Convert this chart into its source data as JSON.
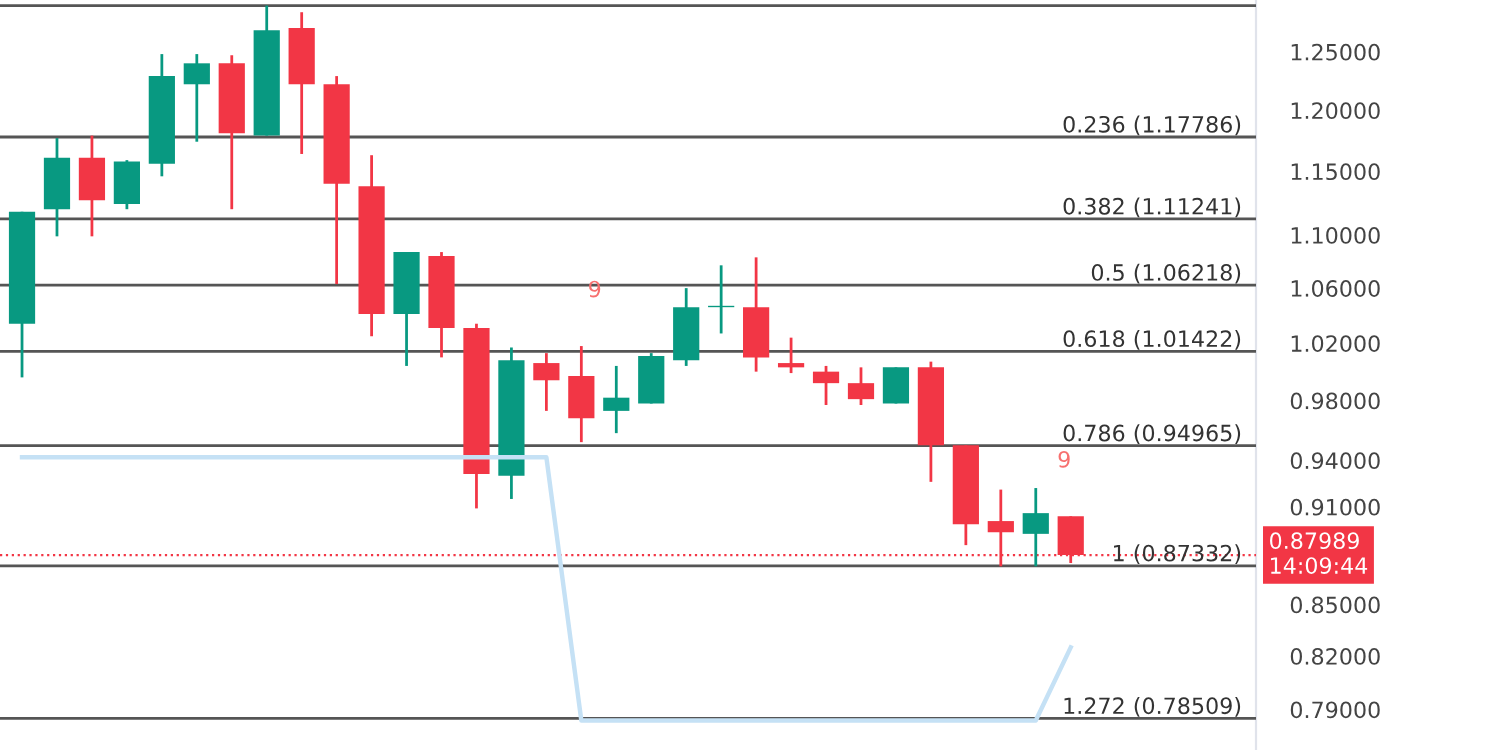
{
  "chart_data": {
    "type": "candlestick",
    "categories": [
      null,
      null,
      null,
      null,
      null,
      null,
      null,
      null,
      null,
      null,
      null,
      null,
      null,
      null,
      null,
      null,
      null,
      null,
      null,
      null,
      null,
      null,
      null,
      null,
      null,
      null,
      null,
      null,
      null,
      null,
      null
    ],
    "ohlc": [
      [
        1.034,
        1.118,
        0.996,
        1.118
      ],
      [
        1.12,
        1.177,
        1.099,
        1.161
      ],
      [
        1.161,
        1.179,
        1.099,
        1.127
      ],
      [
        1.124,
        1.159,
        1.12,
        1.158
      ],
      [
        1.156,
        1.248,
        1.146,
        1.229
      ],
      [
        1.222,
        1.248,
        1.174,
        1.24
      ],
      [
        1.24,
        1.247,
        1.12,
        1.181
      ],
      [
        1.179,
        1.291,
        1.179,
        1.269
      ],
      [
        1.271,
        1.285,
        1.164,
        1.222
      ],
      [
        1.222,
        1.229,
        1.063,
        1.14
      ],
      [
        1.138,
        1.163,
        1.025,
        1.041
      ],
      [
        1.041,
        1.087,
        1.004,
        1.087
      ],
      [
        1.084,
        1.087,
        1.01,
        1.031
      ],
      [
        1.031,
        1.034,
        0.909,
        0.931
      ],
      [
        0.93,
        1.017,
        0.915,
        1.008
      ],
      [
        1.006,
        1.013,
        0.973,
        0.994
      ],
      [
        0.997,
        1.018,
        0.952,
        0.968
      ],
      [
        0.973,
        1.004,
        0.958,
        0.982
      ],
      [
        0.978,
        1.013,
        0.978,
        1.011
      ],
      [
        1.008,
        1.06,
        1.004,
        1.046
      ],
      [
        1.046,
        1.077,
        1.027,
        1.047
      ],
      [
        1.046,
        1.083,
        1.0,
        1.01
      ],
      [
        1.006,
        1.024,
        0.999,
        1.003
      ],
      [
        1.0,
        1.004,
        0.977,
        0.992
      ],
      [
        0.992,
        1.003,
        0.977,
        0.981
      ],
      [
        0.978,
        1.003,
        0.978,
        1.003
      ],
      [
        1.003,
        1.007,
        0.926,
        0.95
      ],
      [
        0.95,
        0.95,
        0.886,
        0.899
      ],
      [
        0.901,
        0.921,
        0.873,
        0.894
      ],
      [
        0.893,
        0.922,
        0.873,
        0.906
      ],
      [
        0.904,
        0.904,
        0.875,
        0.87989
      ]
    ],
    "colors": [
      "#089981",
      "#089981",
      "#f23645",
      "#089981",
      "#089981",
      "#089981",
      "#f23645",
      "#089981",
      "#f23645",
      "#f23645",
      "#f23645",
      "#089981",
      "#f23645",
      "#f23645",
      "#089981",
      "#f23645",
      "#f23645",
      "#089981",
      "#089981",
      "#089981",
      "#089981",
      "#f23645",
      "#f23645",
      "#f23645",
      "#f23645",
      "#089981",
      "#f23645",
      "#f23645",
      "#f23645",
      "#089981",
      "#f23645"
    ],
    "series": [
      {
        "type": "line",
        "color": "#c5e1f5",
        "values": [
          0.942,
          0.942,
          0.942,
          0.942,
          0.942,
          0.942,
          0.942,
          0.942,
          0.942,
          0.942,
          0.942,
          0.942,
          0.942,
          0.942,
          0.942,
          0.942,
          0.784,
          0.784,
          0.784,
          0.784,
          0.784,
          0.784,
          0.784,
          0.784,
          0.784,
          0.784,
          0.784,
          0.784,
          0.784,
          0.784,
          0.825
        ]
      }
    ],
    "ref_lines": [
      {
        "axis": "y",
        "value": 1.291,
        "label": null,
        "color": "#555555"
      },
      {
        "axis": "y",
        "value": 1.17786,
        "label": "0.236 (1.17786)",
        "color": "#555555"
      },
      {
        "axis": "y",
        "value": 1.11241,
        "label": "0.382 (1.11241)",
        "color": "#555555"
      },
      {
        "axis": "y",
        "value": 1.06218,
        "label": "0.5 (1.06218)",
        "color": "#555555"
      },
      {
        "axis": "y",
        "value": 1.01422,
        "label": "0.618 (1.01422)",
        "color": "#555555"
      },
      {
        "axis": "y",
        "value": 0.94965,
        "label": "0.786 (0.94965)",
        "color": "#555555"
      },
      {
        "axis": "y",
        "value": 0.87332,
        "label": "1 (0.87332)",
        "color": "#555555"
      },
      {
        "axis": "y",
        "value": 0.78509,
        "label": "1.272 (0.78509)",
        "color": "#555555"
      },
      {
        "axis": "y",
        "value": 0.87989,
        "label": "0.87989\n14:09:44",
        "color": "#f23645",
        "line_style": "dotted"
      }
    ],
    "annotations": [
      "9",
      "9"
    ],
    "log": true,
    "ylim": [
      0.768,
      1.296
    ],
    "yticks": [
      {
        "value": 0.79,
        "label": "0.79000"
      },
      {
        "value": 0.82,
        "label": "0.82000"
      },
      {
        "value": 0.85,
        "label": "0.85000"
      },
      {
        "value": 0.91,
        "label": "0.91000"
      },
      {
        "value": 0.94,
        "label": "0.94000"
      },
      {
        "value": 0.98,
        "label": "0.98000"
      },
      {
        "value": 1.02,
        "label": "1.02000"
      },
      {
        "value": 1.06,
        "label": "1.06000"
      },
      {
        "value": 1.1,
        "label": "1.10000"
      },
      {
        "value": 1.15,
        "label": "1.15000"
      },
      {
        "value": 1.2,
        "label": "1.20000"
      },
      {
        "value": 1.25,
        "label": "1.25000"
      }
    ],
    "tick_labels": "y",
    "grid": false,
    "legend": false
  }
}
